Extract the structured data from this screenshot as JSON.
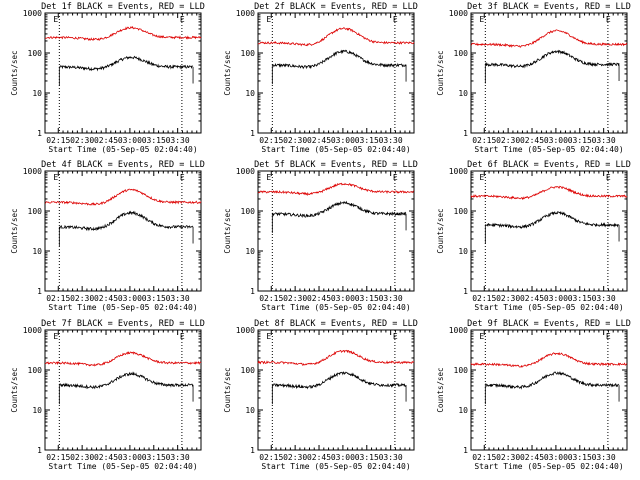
{
  "chart_data": [
    {
      "type": "line",
      "title": "Det 1f BLACK = Events, RED = LLD",
      "xlabel": "Start Time (05-Sep-05 02:04:40)",
      "ylabel": "Counts/sec",
      "yscale": "log",
      "ylim": [
        1,
        1000
      ],
      "yticks": [
        "1",
        "10",
        "100",
        "1000"
      ],
      "xticks": [
        "02:15",
        "02:30",
        "02:45",
        "03:00",
        "03:15",
        "03:30"
      ],
      "xlim_minutes": [
        2,
        100
      ],
      "vlines_minutes": [
        11,
        88
      ],
      "annotations": [
        "E",
        "E"
      ],
      "series": [
        {
          "color": "#000000",
          "start": 11,
          "end": 95,
          "base": 45,
          "peak": 78
        },
        {
          "color": "#dd0000",
          "start": 2,
          "end": 100,
          "base": 245,
          "peak": 430
        }
      ]
    },
    {
      "type": "line",
      "title": "Det 2f BLACK = Events, RED = LLD",
      "xlabel": "Start Time (05-Sep-05 02:04:40)",
      "ylabel": "Counts/sec",
      "yscale": "log",
      "ylim": [
        1,
        1000
      ],
      "yticks": [
        "1",
        "10",
        "100",
        "1000"
      ],
      "xticks": [
        "02:15",
        "02:30",
        "02:45",
        "03:00",
        "03:15",
        "03:30"
      ],
      "xlim_minutes": [
        2,
        100
      ],
      "vlines_minutes": [
        11,
        88
      ],
      "annotations": [
        "E",
        "E"
      ],
      "series": [
        {
          "color": "#000000",
          "start": 11,
          "end": 95,
          "base": 50,
          "peak": 110
        },
        {
          "color": "#dd0000",
          "start": 2,
          "end": 100,
          "base": 180,
          "peak": 410
        }
      ]
    },
    {
      "type": "line",
      "title": "Det 3f BLACK = Events, RED = LLD",
      "xlabel": "Start Time (05-Sep-05 02:04:40)",
      "ylabel": "Counts/sec",
      "yscale": "log",
      "ylim": [
        1,
        1000
      ],
      "yticks": [
        "1",
        "10",
        "100",
        "1000"
      ],
      "xticks": [
        "02:15",
        "02:30",
        "02:45",
        "03:00",
        "03:15",
        "03:30"
      ],
      "xlim_minutes": [
        2,
        100
      ],
      "vlines_minutes": [
        11,
        88
      ],
      "annotations": [
        "E",
        "E"
      ],
      "series": [
        {
          "color": "#000000",
          "start": 11,
          "end": 95,
          "base": 52,
          "peak": 110
        },
        {
          "color": "#dd0000",
          "start": 2,
          "end": 100,
          "base": 165,
          "peak": 360
        }
      ]
    },
    {
      "type": "line",
      "title": "Det 4f BLACK = Events, RED = LLD",
      "xlabel": "Start Time (05-Sep-05 02:04:40)",
      "ylabel": "Counts/sec",
      "yscale": "log",
      "ylim": [
        1,
        1000
      ],
      "yticks": [
        "1",
        "10",
        "100",
        "1000"
      ],
      "xticks": [
        "02:15",
        "02:30",
        "02:45",
        "03:00",
        "03:15",
        "03:30"
      ],
      "xlim_minutes": [
        2,
        100
      ],
      "vlines_minutes": [
        11,
        88
      ],
      "annotations": [
        "E",
        "E"
      ],
      "series": [
        {
          "color": "#000000",
          "start": 11,
          "end": 95,
          "base": 40,
          "peak": 90
        },
        {
          "color": "#dd0000",
          "start": 2,
          "end": 100,
          "base": 165,
          "peak": 340
        }
      ]
    },
    {
      "type": "line",
      "title": "Det 5f BLACK = Events, RED = LLD",
      "xlabel": "Start Time (05-Sep-05 02:04:40)",
      "ylabel": "Counts/sec",
      "yscale": "log",
      "ylim": [
        1,
        1000
      ],
      "yticks": [
        "1",
        "10",
        "100",
        "1000"
      ],
      "xticks": [
        "02:15",
        "02:30",
        "02:45",
        "03:00",
        "03:15",
        "03:30"
      ],
      "xlim_minutes": [
        2,
        100
      ],
      "vlines_minutes": [
        11,
        88
      ],
      "annotations": [
        "E",
        "E"
      ],
      "series": [
        {
          "color": "#000000",
          "start": 11,
          "end": 95,
          "base": 85,
          "peak": 160
        },
        {
          "color": "#dd0000",
          "start": 2,
          "end": 100,
          "base": 300,
          "peak": 480
        }
      ]
    },
    {
      "type": "line",
      "title": "Det 6f BLACK = Events, RED = LLD",
      "xlabel": "Start Time (05-Sep-05 02:04:40)",
      "ylabel": "Counts/sec",
      "yscale": "log",
      "ylim": [
        1,
        1000
      ],
      "yticks": [
        "1",
        "10",
        "100",
        "1000"
      ],
      "xticks": [
        "02:15",
        "02:30",
        "02:45",
        "03:00",
        "03:15",
        "03:30"
      ],
      "xlim_minutes": [
        2,
        100
      ],
      "vlines_minutes": [
        11,
        88
      ],
      "annotations": [
        "E",
        "E"
      ],
      "series": [
        {
          "color": "#000000",
          "start": 11,
          "end": 95,
          "base": 45,
          "peak": 90
        },
        {
          "color": "#dd0000",
          "start": 2,
          "end": 100,
          "base": 235,
          "peak": 400
        }
      ]
    },
    {
      "type": "line",
      "title": "Det 7f BLACK = Events, RED = LLD",
      "xlabel": "Start Time (05-Sep-05 02:04:40)",
      "ylabel": "Counts/sec",
      "yscale": "log",
      "ylim": [
        1,
        1000
      ],
      "yticks": [
        "1",
        "10",
        "100",
        "1000"
      ],
      "xticks": [
        "02:15",
        "02:30",
        "02:45",
        "03:00",
        "03:15",
        "03:30"
      ],
      "xlim_minutes": [
        2,
        100
      ],
      "vlines_minutes": [
        11,
        88
      ],
      "annotations": [
        "E",
        "E"
      ],
      "series": [
        {
          "color": "#000000",
          "start": 11,
          "end": 95,
          "base": 42,
          "peak": 80
        },
        {
          "color": "#dd0000",
          "start": 2,
          "end": 100,
          "base": 150,
          "peak": 270
        }
      ]
    },
    {
      "type": "line",
      "title": "Det 8f BLACK = Events, RED = LLD",
      "xlabel": "Start Time (05-Sep-05 02:04:40)",
      "ylabel": "Counts/sec",
      "yscale": "log",
      "ylim": [
        1,
        1000
      ],
      "yticks": [
        "1",
        "10",
        "100",
        "1000"
      ],
      "xticks": [
        "02:15",
        "02:30",
        "02:45",
        "03:00",
        "03:15",
        "03:30"
      ],
      "xlim_minutes": [
        2,
        100
      ],
      "vlines_minutes": [
        11,
        88
      ],
      "annotations": [
        "E",
        "E"
      ],
      "series": [
        {
          "color": "#000000",
          "start": 11,
          "end": 95,
          "base": 42,
          "peak": 85
        },
        {
          "color": "#dd0000",
          "start": 2,
          "end": 100,
          "base": 155,
          "peak": 300
        }
      ]
    },
    {
      "type": "line",
      "title": "Det 9f BLACK = Events, RED = LLD",
      "xlabel": "Start Time (05-Sep-05 02:04:40)",
      "ylabel": "Counts/sec",
      "yscale": "log",
      "ylim": [
        1,
        1000
      ],
      "yticks": [
        "1",
        "10",
        "100",
        "1000"
      ],
      "xticks": [
        "02:15",
        "02:30",
        "02:45",
        "03:00",
        "03:15",
        "03:30"
      ],
      "xlim_minutes": [
        2,
        100
      ],
      "vlines_minutes": [
        11,
        88
      ],
      "annotations": [
        "E",
        "E"
      ],
      "series": [
        {
          "color": "#000000",
          "start": 11,
          "end": 95,
          "base": 42,
          "peak": 85
        },
        {
          "color": "#dd0000",
          "start": 2,
          "end": 100,
          "base": 140,
          "peak": 260
        }
      ]
    }
  ]
}
